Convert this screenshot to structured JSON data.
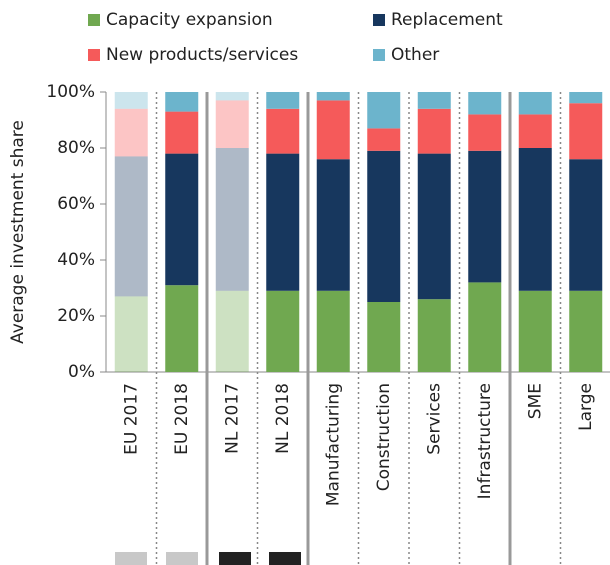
{
  "chart_data": {
    "type": "stacked_bar",
    "y_label": "Average investment share",
    "categories": [
      "EU 2017",
      "EU 2018",
      "NL 2017",
      "NL 2018",
      "Manufacturing",
      "Construction",
      "Services",
      "Infrastructure",
      "SME",
      "Large"
    ],
    "faded": [
      true,
      false,
      true,
      false,
      false,
      false,
      false,
      false,
      false,
      false
    ],
    "series": [
      {
        "name": "Capacity expansion",
        "color": "#70a850",
        "values": [
          27,
          31,
          29,
          29,
          29,
          25,
          26,
          32,
          29,
          29
        ]
      },
      {
        "name": "Replacement",
        "color": "#17375e",
        "values": [
          50,
          47,
          51,
          49,
          47,
          54,
          52,
          47,
          51,
          47
        ]
      },
      {
        "name": "New products/services",
        "color": "#f55a5a",
        "values": [
          17,
          15,
          17,
          16,
          21,
          8,
          16,
          13,
          12,
          20
        ]
      },
      {
        "name": "Other",
        "color": "#6cb4cc",
        "values": [
          6,
          7,
          3,
          6,
          3,
          13,
          6,
          8,
          8,
          4
        ]
      }
    ],
    "ylim": [
      0,
      100
    ],
    "yticks": [
      {
        "value": 0,
        "label": "0%"
      },
      {
        "value": 20,
        "label": "20%"
      },
      {
        "value": 40,
        "label": "40%"
      },
      {
        "value": 60,
        "label": "60%"
      },
      {
        "value": 80,
        "label": "80%"
      },
      {
        "value": 100,
        "label": "100%"
      }
    ]
  }
}
